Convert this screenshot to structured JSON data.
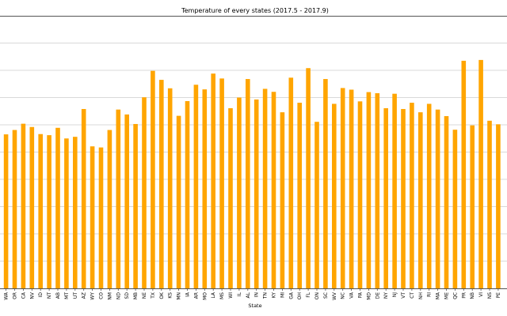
{
  "chart_data": {
    "type": "bar",
    "title": "Temperature of every states (2017.5 - 2017.9)",
    "xlabel": "State",
    "ylabel": "",
    "ylim": [
      0,
      100
    ],
    "grid": "y",
    "bar_color": "#ffa500",
    "categories": [
      "WA",
      "OR",
      "CA",
      "NV",
      "ID",
      "NT",
      "AB",
      "MT",
      "UT",
      "AZ",
      "WY",
      "CO",
      "NM",
      "ND",
      "SD",
      "MB",
      "NE",
      "TX",
      "OK",
      "KS",
      "MN",
      "IA",
      "AR",
      "MO",
      "LA",
      "MS",
      "WI",
      "IL",
      "AL",
      "IN",
      "TN",
      "KY",
      "MI",
      "GA",
      "OH",
      "FL",
      "ON",
      "SC",
      "WV",
      "NC",
      "VA",
      "PA",
      "MD",
      "DE",
      "NY",
      "NJ",
      "VT",
      "CT",
      "NH",
      "RI",
      "MA",
      "ME",
      "QC",
      "PR",
      "NB",
      "VI",
      "NS",
      "PE"
    ],
    "values": [
      56.5,
      58.1,
      60.4,
      59.2,
      56.6,
      56.2,
      58.9,
      55.0,
      55.6,
      65.8,
      52.1,
      51.7,
      58.1,
      65.6,
      63.8,
      60.3,
      70.1,
      79.8,
      76.5,
      73.4,
      63.3,
      68.7,
      74.7,
      73.0,
      78.8,
      77.0,
      66.1,
      70.0,
      76.8,
      69.3,
      73.2,
      72.1,
      64.6,
      77.3,
      68.1,
      80.8,
      61.1,
      76.8,
      67.7,
      73.5,
      72.9,
      68.6,
      72.0,
      71.6,
      66.1,
      71.4,
      65.8,
      68.1,
      64.6,
      67.7,
      65.6,
      63.2,
      58.2,
      83.5,
      59.8,
      83.8,
      61.5,
      60.2
    ]
  }
}
